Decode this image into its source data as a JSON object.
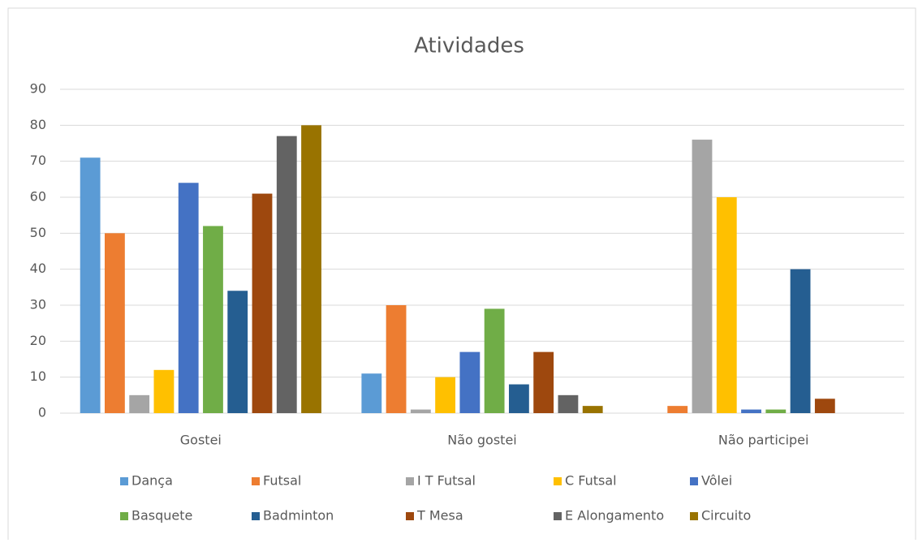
{
  "chart_data": {
    "type": "bar",
    "title": "Atividades",
    "categories": [
      "Gostei",
      "Não gostei",
      "Não participei"
    ],
    "series": [
      {
        "name": "Dança",
        "color": "#5b9bd5",
        "values": [
          71,
          11,
          0
        ]
      },
      {
        "name": "Futsal",
        "color": "#ed7d31",
        "values": [
          50,
          30,
          2
        ]
      },
      {
        "name": "I T Futsal",
        "color": "#a5a5a5",
        "values": [
          5,
          1,
          76
        ]
      },
      {
        "name": "C Futsal",
        "color": "#ffc000",
        "values": [
          12,
          10,
          60
        ]
      },
      {
        "name": "Vôlei",
        "color": "#4472c4",
        "values": [
          64,
          17,
          1
        ]
      },
      {
        "name": "Basquete",
        "color": "#70ad47",
        "values": [
          52,
          29,
          1
        ]
      },
      {
        "name": "Badminton",
        "color": "#255e91",
        "values": [
          34,
          8,
          40
        ]
      },
      {
        "name": "T Mesa",
        "color": "#9e480e",
        "values": [
          61,
          17,
          4
        ]
      },
      {
        "name": "E Alongamento",
        "color": "#636363",
        "values": [
          77,
          5,
          0
        ]
      },
      {
        "name": "Circuito",
        "color": "#997300",
        "values": [
          80,
          2,
          0
        ]
      }
    ],
    "ylim": [
      0,
      90
    ],
    "yticks": [
      0,
      10,
      20,
      30,
      40,
      50,
      60,
      70,
      80,
      90
    ],
    "grid": true,
    "legend": "bottom"
  }
}
